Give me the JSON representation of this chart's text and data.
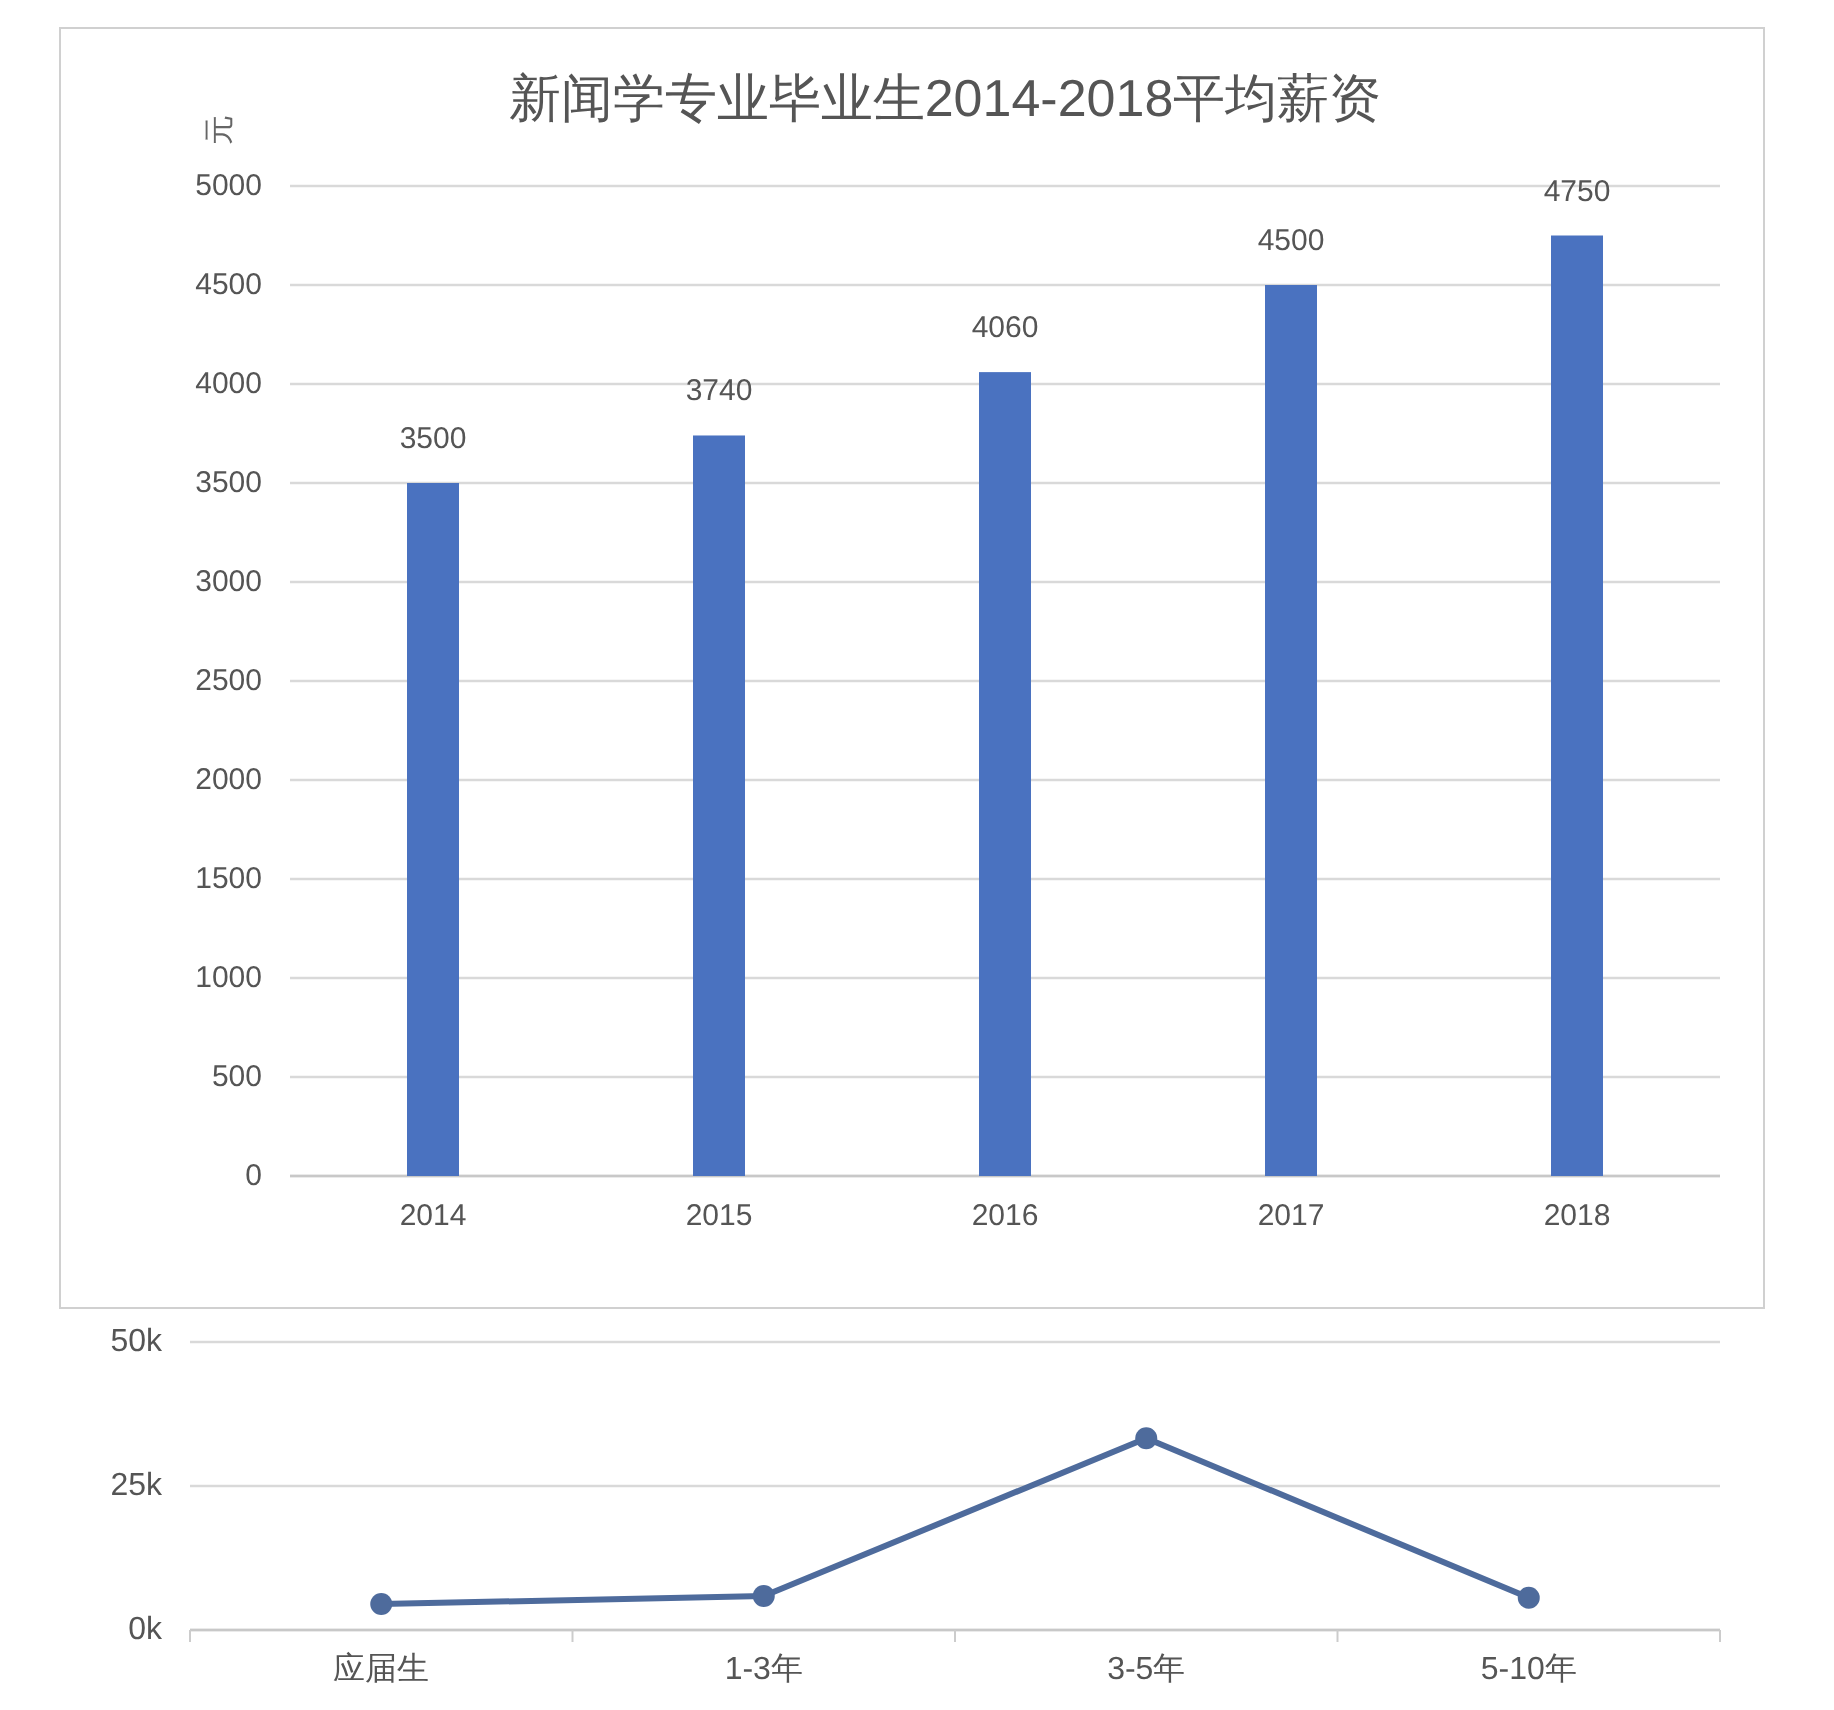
{
  "chart_data": [
    {
      "type": "bar",
      "title": "新闻学专业毕业生2014-2018平均薪资",
      "ylabel": "元",
      "categories": [
        "2014",
        "2015",
        "2016",
        "2017",
        "2018"
      ],
      "series": [
        {
          "color": "#4a72c0",
          "values": [
            3500,
            3740,
            4060,
            4500,
            4750
          ]
        }
      ],
      "ylim": [
        0,
        5000
      ],
      "yticks": [
        0,
        500,
        1000,
        1500,
        2000,
        2500,
        3000,
        3500,
        4000,
        4500,
        5000
      ],
      "grid": "y",
      "data_labels": true
    },
    {
      "type": "line",
      "categories": [
        "应届生",
        "1-3年",
        "3-5年",
        "5-10年"
      ],
      "series": [
        {
          "color": "#4e6b9c",
          "values": [
            4500,
            5900,
            33300,
            5600
          ]
        }
      ],
      "ylim": [
        0,
        50000
      ],
      "yticks": [
        {
          "value": 0,
          "label": "0k"
        },
        {
          "value": 25000,
          "label": "25k"
        },
        {
          "value": 50000,
          "label": "50k"
        }
      ],
      "grid": "y",
      "marker": "circle",
      "line_style": "solid"
    }
  ]
}
